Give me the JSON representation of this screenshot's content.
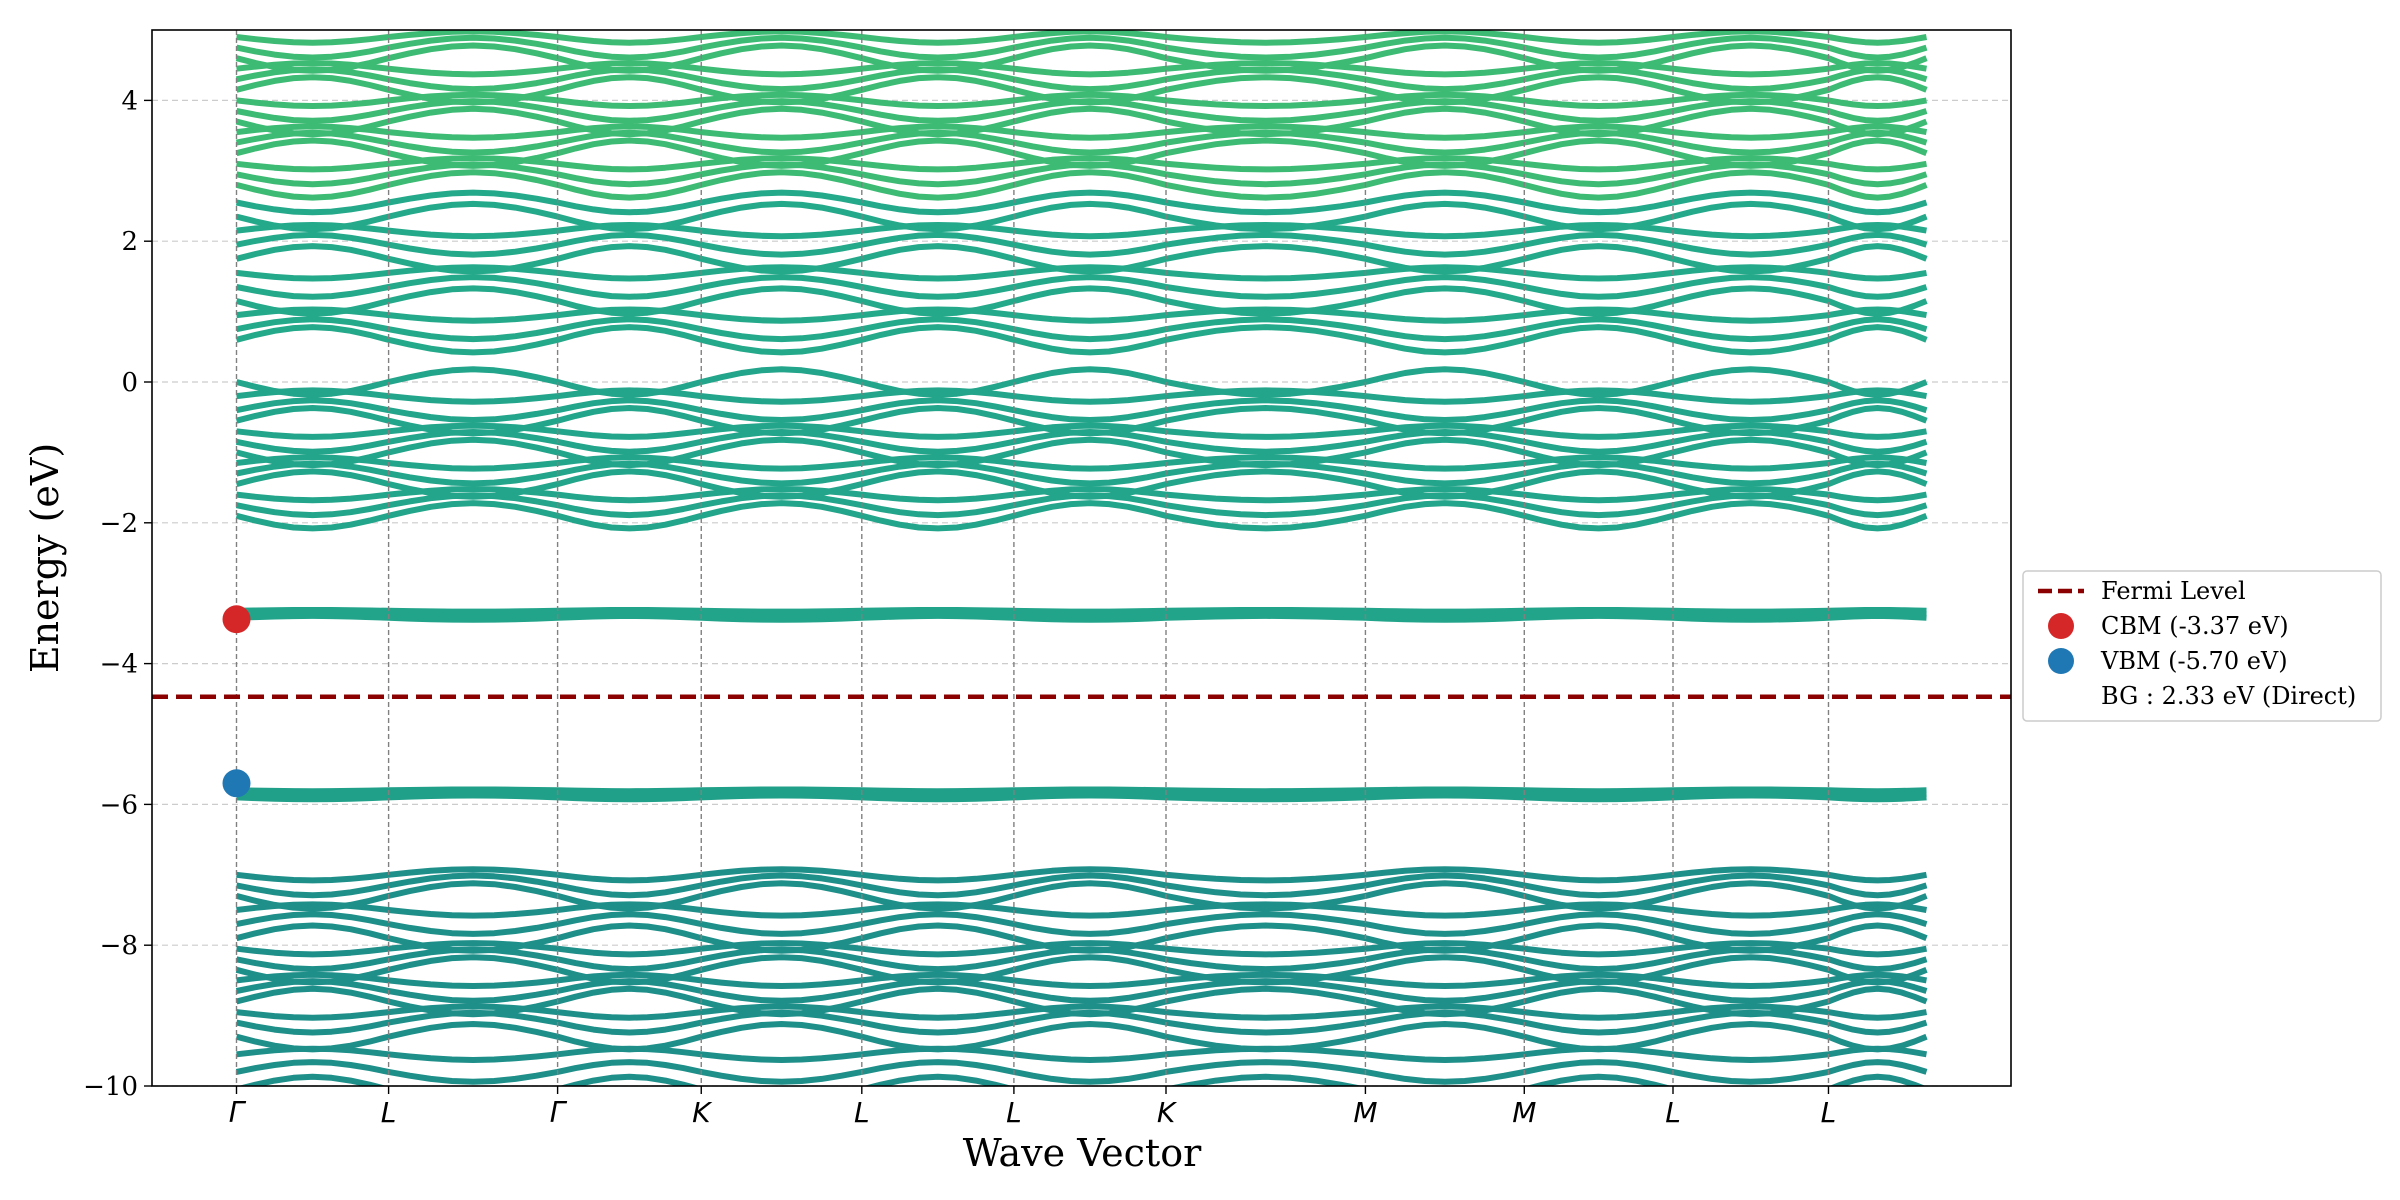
{
  "chart_data": {
    "type": "line",
    "title": "",
    "xlabel": "Wave Vector",
    "ylabel": "Energy (eV)",
    "ylim": [
      -10,
      5
    ],
    "xlim": [
      -0.5,
      10.5
    ],
    "grid": true,
    "legend_position": "right-center",
    "yticks": [
      -10,
      -8,
      -6,
      -4,
      -2,
      0,
      2,
      4
    ],
    "yticklabels": [
      "−10",
      "−8",
      "−6",
      "−4",
      "−2",
      "0",
      "2",
      "4"
    ],
    "kpoints": [
      {
        "label": "Γ",
        "x": 0
      },
      {
        "label": "L",
        "x": 0.9
      },
      {
        "label": "Γ",
        "x": 1.9
      },
      {
        "label": "K",
        "x": 2.75
      },
      {
        "label": "L",
        "x": 3.7
      },
      {
        "label": "L",
        "x": 4.6
      },
      {
        "label": "K",
        "x": 5.5
      },
      {
        "label": "M",
        "x": 6.68
      },
      {
        "label": "M",
        "x": 7.62
      },
      {
        "label": "L",
        "x": 8.5
      },
      {
        "label": "L",
        "x": 9.42
      }
    ],
    "x_end": 10.0,
    "fermi_level": -4.47,
    "cbm": {
      "x": 0,
      "energy": -3.37
    },
    "vbm": {
      "x": 0,
      "energy": -5.7
    },
    "band_groups": [
      {
        "name": "deep-valence",
        "lines": [
          -10.05,
          -9.8,
          -9.55,
          -9.3,
          -9.1,
          -8.95,
          -8.8,
          -8.65,
          -8.5,
          -8.35,
          -8.2,
          -8.05,
          -7.9,
          -7.7,
          -7.5,
          -7.3,
          -7.15,
          -7.0
        ],
        "color": "#1f8f8a"
      },
      {
        "name": "valence-flat",
        "lines": [
          -5.9,
          -5.85,
          -5.8
        ],
        "color": "#21a089"
      },
      {
        "name": "conduction-flat",
        "lines": [
          -3.35,
          -3.3,
          -3.25
        ],
        "color": "#21a48a"
      },
      {
        "name": "lower-conduction",
        "lines": [
          -1.9,
          -1.75,
          -1.6,
          -1.45,
          -1.3,
          -1.15,
          -1.0,
          -0.85,
          -0.7,
          -0.55,
          -0.4,
          -0.2,
          0.0
        ],
        "color": "#22a58a"
      },
      {
        "name": "mid-conduction",
        "lines": [
          0.6,
          0.75,
          0.95,
          1.15,
          1.35,
          1.55,
          1.75,
          1.95,
          2.15,
          2.35,
          2.55
        ],
        "color": "#24a98a"
      },
      {
        "name": "upper-conduction",
        "lines": [
          2.8,
          2.95,
          3.1,
          3.25,
          3.4,
          3.55,
          3.7,
          3.85,
          4.0,
          4.15,
          4.3,
          4.45,
          4.6,
          4.75,
          4.9
        ],
        "color": "#3dbb74"
      }
    ],
    "legend": [
      {
        "label": "Fermi Level",
        "kind": "dashed-line",
        "color": "#8b0000"
      },
      {
        "label": "CBM (-3.37 eV)",
        "kind": "marker",
        "color": "#d62728"
      },
      {
        "label": "VBM (-5.70 eV)",
        "kind": "marker",
        "color": "#1f77b4"
      },
      {
        "label": "BG : 2.33 eV (Direct)",
        "kind": "text",
        "color": ""
      }
    ],
    "colors": {
      "fermi": "#8b0000",
      "cbm": "#d62728",
      "vbm": "#1f77b4",
      "grid": "#cccccc",
      "kpoint_line": "#808080"
    }
  }
}
